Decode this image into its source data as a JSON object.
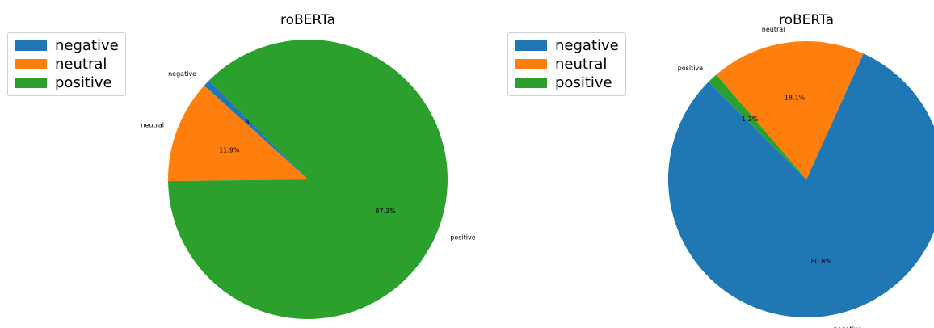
{
  "chart_data": [
    {
      "type": "pie",
      "title": "roBERTa",
      "categories": [
        "negative",
        "neutral",
        "positive"
      ],
      "values": [
        0.8,
        11.9,
        87.3
      ],
      "value_labels": [
        "0.8%",
        "11.9%",
        "87.3%"
      ],
      "colors": [
        "#1f77b4",
        "#ff7f0e",
        "#2ca02c"
      ],
      "legend": {
        "entries": [
          "negative",
          "neutral",
          "positive"
        ],
        "placement": "upper-left"
      }
    },
    {
      "type": "pie",
      "title": "roBERTa",
      "categories": [
        "negative",
        "neutral",
        "positive"
      ],
      "values": [
        80.8,
        18.1,
        1.2
      ],
      "value_labels": [
        "80.8%",
        "18.1%",
        "1.2%"
      ],
      "colors": [
        "#1f77b4",
        "#ff7f0e",
        "#2ca02c"
      ],
      "legend": {
        "entries": [
          "negative",
          "neutral",
          "positive"
        ],
        "placement": "upper-left"
      }
    }
  ]
}
